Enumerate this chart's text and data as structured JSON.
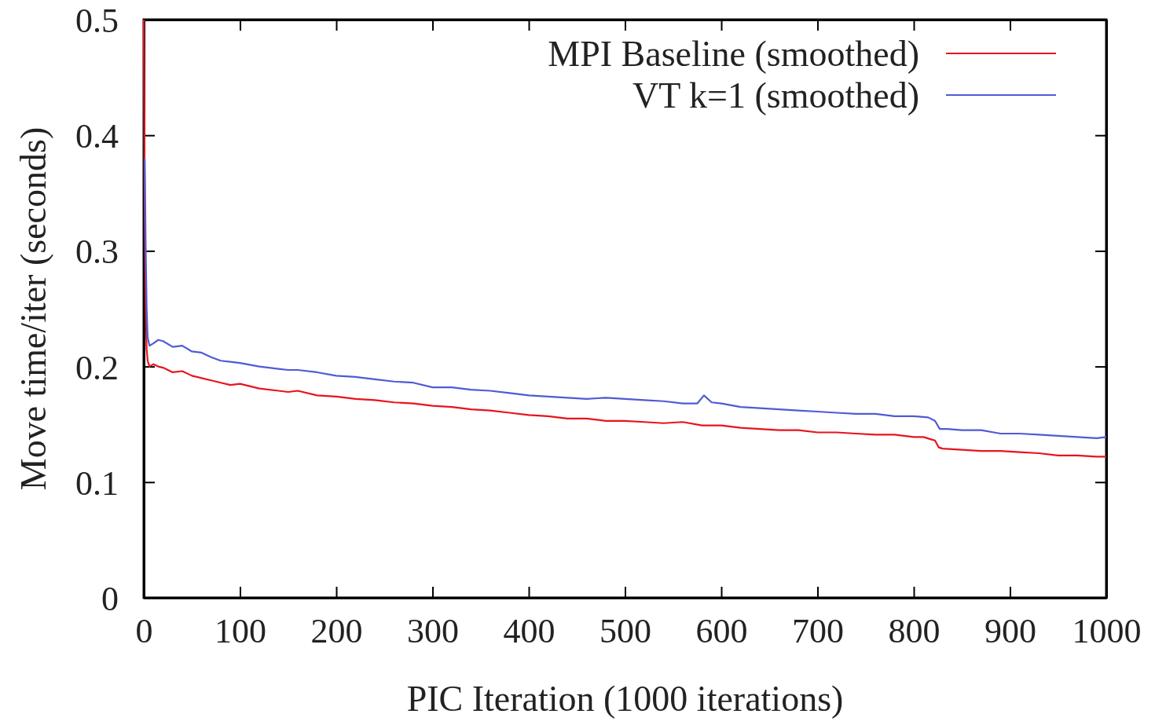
{
  "chart_data": {
    "type": "line",
    "xlabel": "PIC Iteration (1000 iterations)",
    "ylabel": "Move time/iter (seconds)",
    "xlim": [
      0,
      1000
    ],
    "xticks": [
      0,
      100,
      200,
      300,
      400,
      500,
      600,
      700,
      800,
      900,
      1000
    ],
    "ylim": [
      0,
      0.5
    ],
    "yticks": [
      0,
      0.1,
      0.2,
      0.3,
      0.4,
      0.5
    ],
    "legend": "top right",
    "line_style": "solid",
    "marker": "none",
    "grid": false,
    "series": [
      {
        "name": "MPI Baseline (smoothed)",
        "color": "#e8141c",
        "x": [
          0,
          1,
          2,
          3,
          4,
          6,
          10,
          15,
          20,
          30,
          40,
          50,
          60,
          70,
          80,
          90,
          100,
          120,
          140,
          150,
          160,
          180,
          200,
          220,
          240,
          260,
          280,
          300,
          320,
          340,
          360,
          380,
          400,
          420,
          440,
          460,
          480,
          500,
          520,
          540,
          560,
          580,
          600,
          620,
          640,
          660,
          680,
          700,
          720,
          740,
          760,
          780,
          800,
          810,
          818,
          822,
          826,
          830,
          850,
          870,
          890,
          910,
          930,
          950,
          970,
          990,
          1000
        ],
        "values": [
          0.5,
          0.33,
          0.25,
          0.215,
          0.205,
          0.2,
          0.202,
          0.2,
          0.199,
          0.195,
          0.196,
          0.192,
          0.19,
          0.188,
          0.186,
          0.184,
          0.185,
          0.181,
          0.179,
          0.178,
          0.179,
          0.175,
          0.174,
          0.172,
          0.171,
          0.169,
          0.168,
          0.166,
          0.165,
          0.163,
          0.162,
          0.16,
          0.158,
          0.157,
          0.155,
          0.155,
          0.153,
          0.153,
          0.152,
          0.151,
          0.152,
          0.149,
          0.149,
          0.147,
          0.146,
          0.145,
          0.145,
          0.143,
          0.143,
          0.142,
          0.141,
          0.141,
          0.139,
          0.139,
          0.137,
          0.136,
          0.13,
          0.129,
          0.128,
          0.127,
          0.127,
          0.126,
          0.125,
          0.123,
          0.123,
          0.122,
          0.122
        ]
      },
      {
        "name": "VT k=1 (smoothed)",
        "color": "#4f5bd5",
        "x": [
          1,
          2,
          3,
          4,
          6,
          10,
          15,
          20,
          30,
          40,
          50,
          60,
          70,
          80,
          90,
          100,
          120,
          140,
          150,
          160,
          180,
          200,
          220,
          240,
          260,
          280,
          300,
          320,
          340,
          360,
          380,
          400,
          420,
          440,
          460,
          480,
          500,
          520,
          540,
          560,
          575,
          582,
          590,
          600,
          620,
          640,
          660,
          680,
          700,
          720,
          740,
          760,
          780,
          800,
          815,
          822,
          827,
          835,
          850,
          870,
          890,
          910,
          930,
          950,
          970,
          990,
          1000
        ],
        "values": [
          0.38,
          0.3,
          0.25,
          0.225,
          0.218,
          0.22,
          0.223,
          0.222,
          0.217,
          0.218,
          0.213,
          0.212,
          0.208,
          0.205,
          0.204,
          0.203,
          0.2,
          0.198,
          0.197,
          0.197,
          0.195,
          0.192,
          0.191,
          0.189,
          0.187,
          0.186,
          0.182,
          0.182,
          0.18,
          0.179,
          0.177,
          0.175,
          0.174,
          0.173,
          0.172,
          0.173,
          0.172,
          0.171,
          0.17,
          0.168,
          0.168,
          0.175,
          0.169,
          0.168,
          0.165,
          0.164,
          0.163,
          0.162,
          0.161,
          0.16,
          0.159,
          0.159,
          0.157,
          0.157,
          0.156,
          0.153,
          0.146,
          0.146,
          0.145,
          0.145,
          0.142,
          0.142,
          0.141,
          0.14,
          0.139,
          0.138,
          0.139
        ]
      }
    ]
  }
}
